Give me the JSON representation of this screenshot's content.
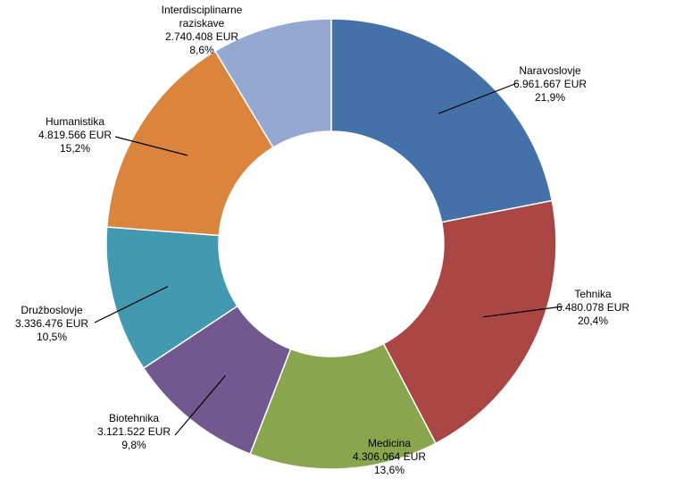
{
  "chart_data": {
    "type": "pie",
    "variant": "doughnut",
    "legend": "none",
    "start_angle_deg": 0,
    "direction": "clockwise",
    "slices": [
      {
        "label": "Naravoslovje",
        "value": 6961667,
        "value_text": "6.961.667 EUR",
        "percent": 21.9,
        "percent_text": "21,9%",
        "color": "#4472A8"
      },
      {
        "label": "Tehnika",
        "value": 6480078,
        "value_text": "6.480.078 EUR",
        "percent": 20.4,
        "percent_text": "20,4%",
        "color": "#AA4644"
      },
      {
        "label": "Medicina",
        "value": 4306064,
        "value_text": "4.306.064 EUR",
        "percent": 13.6,
        "percent_text": "13,6%",
        "color": "#89A64F"
      },
      {
        "label": "Biotehnika",
        "value": 3121522,
        "value_text": "3.121.522 EUR",
        "percent": 9.8,
        "percent_text": "9,8%",
        "color": "#71598F"
      },
      {
        "label": "Družboslovje",
        "value": 3336476,
        "value_text": "3.336.476 EUR",
        "percent": 10.5,
        "percent_text": "10,5%",
        "color": "#4399AF"
      },
      {
        "label": "Humanistika",
        "value": 4819566,
        "value_text": "4.819.566 EUR",
        "percent": 15.2,
        "percent_text": "15,2%",
        "color": "#DB843D"
      },
      {
        "label": "Interdisciplinarne raziskave",
        "value": 2740408,
        "value_text": "2.740.408 EUR",
        "percent": 8.6,
        "percent_text": "8,6%",
        "color": "#95A8D1"
      }
    ]
  }
}
